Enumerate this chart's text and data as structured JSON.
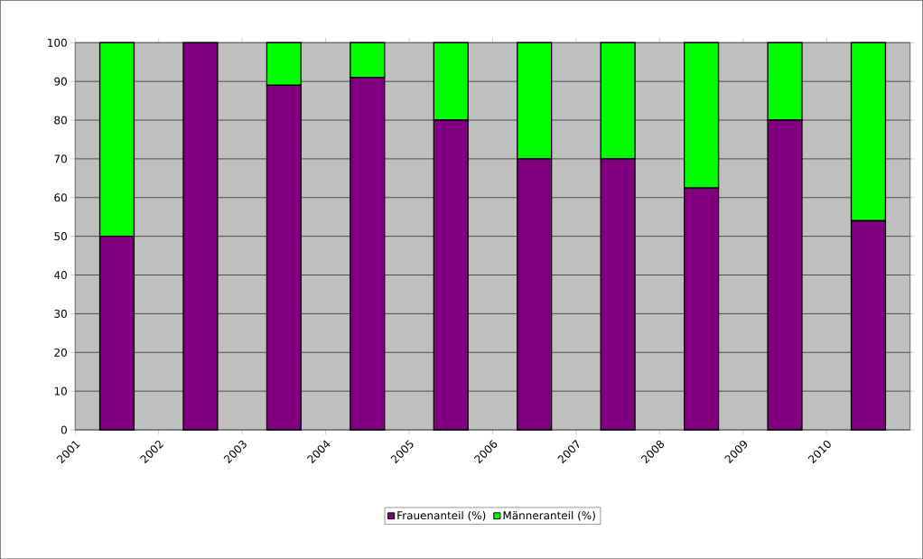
{
  "chart_data": {
    "type": "bar",
    "stacked": true,
    "categories": [
      "2001",
      "2002",
      "2003",
      "2004",
      "2005",
      "2006",
      "2007",
      "2008",
      "2009",
      "2010"
    ],
    "series": [
      {
        "name": "Frauenanteil (%)",
        "color": "#800080",
        "values": [
          50,
          100,
          89,
          91,
          80,
          70,
          70,
          62.5,
          80,
          54
        ]
      },
      {
        "name": "Männeranteil (%)",
        "color": "#00ff00",
        "values": [
          50,
          0,
          11,
          9,
          20,
          30,
          30,
          37.5,
          20,
          46
        ]
      }
    ],
    "ylim": [
      0,
      100
    ],
    "yticks": [
      0,
      10,
      20,
      30,
      40,
      50,
      60,
      70,
      80,
      90,
      100
    ],
    "grid": "y",
    "legend": "bottom"
  }
}
